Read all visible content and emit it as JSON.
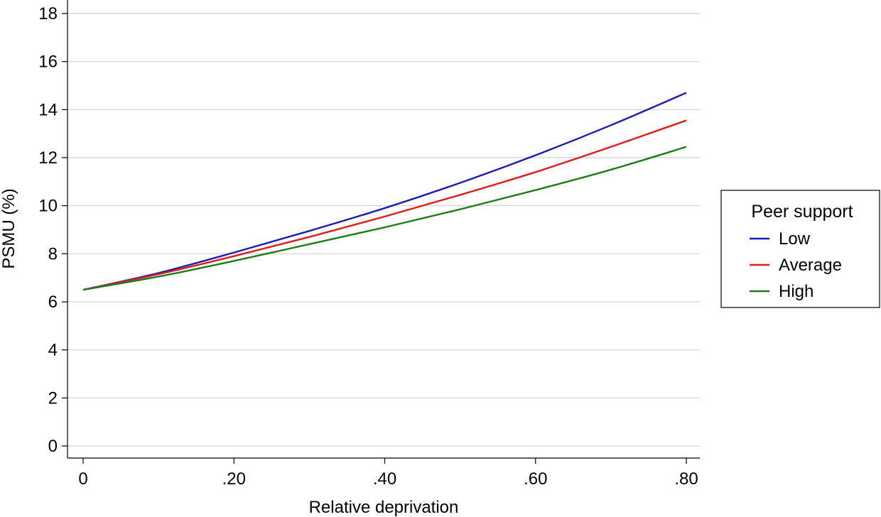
{
  "chart_data": {
    "type": "line",
    "xlabel": "Relative deprivation",
    "ylabel": "PSMU (%)",
    "xlim": [
      0,
      0.8
    ],
    "ylim": [
      0,
      18
    ],
    "x_ticks": [
      {
        "value": 0,
        "label": "0"
      },
      {
        "value": 0.2,
        "label": ".20"
      },
      {
        "value": 0.4,
        "label": ".40"
      },
      {
        "value": 0.6,
        "label": ".60"
      },
      {
        "value": 0.8,
        "label": ".80"
      }
    ],
    "y_ticks": [
      {
        "value": 0,
        "label": "0"
      },
      {
        "value": 2,
        "label": "2"
      },
      {
        "value": 4,
        "label": "4"
      },
      {
        "value": 6,
        "label": "6"
      },
      {
        "value": 8,
        "label": "8"
      },
      {
        "value": 10,
        "label": "10"
      },
      {
        "value": 12,
        "label": "12"
      },
      {
        "value": 14,
        "label": "14"
      },
      {
        "value": 16,
        "label": "16"
      },
      {
        "value": 18,
        "label": "18"
      }
    ],
    "grid": "horizontal",
    "x": [
      0,
      0.1,
      0.2,
      0.3,
      0.4,
      0.5,
      0.6,
      0.7,
      0.8
    ],
    "series": [
      {
        "name": "Low",
        "color": "#1c1cb4",
        "values": [
          6.5,
          7.2,
          8.05,
          8.95,
          9.9,
          10.95,
          12.1,
          13.35,
          14.7
        ]
      },
      {
        "name": "Average",
        "color": "#e31a1c",
        "values": [
          6.5,
          7.15,
          7.9,
          8.7,
          9.55,
          10.45,
          11.4,
          12.45,
          13.55
        ]
      },
      {
        "name": "High",
        "color": "#1a7d1a",
        "values": [
          6.5,
          7.05,
          7.7,
          8.4,
          9.1,
          9.85,
          10.65,
          11.5,
          12.45
        ]
      }
    ],
    "legend": {
      "title": "Peer support",
      "position": "right"
    }
  }
}
